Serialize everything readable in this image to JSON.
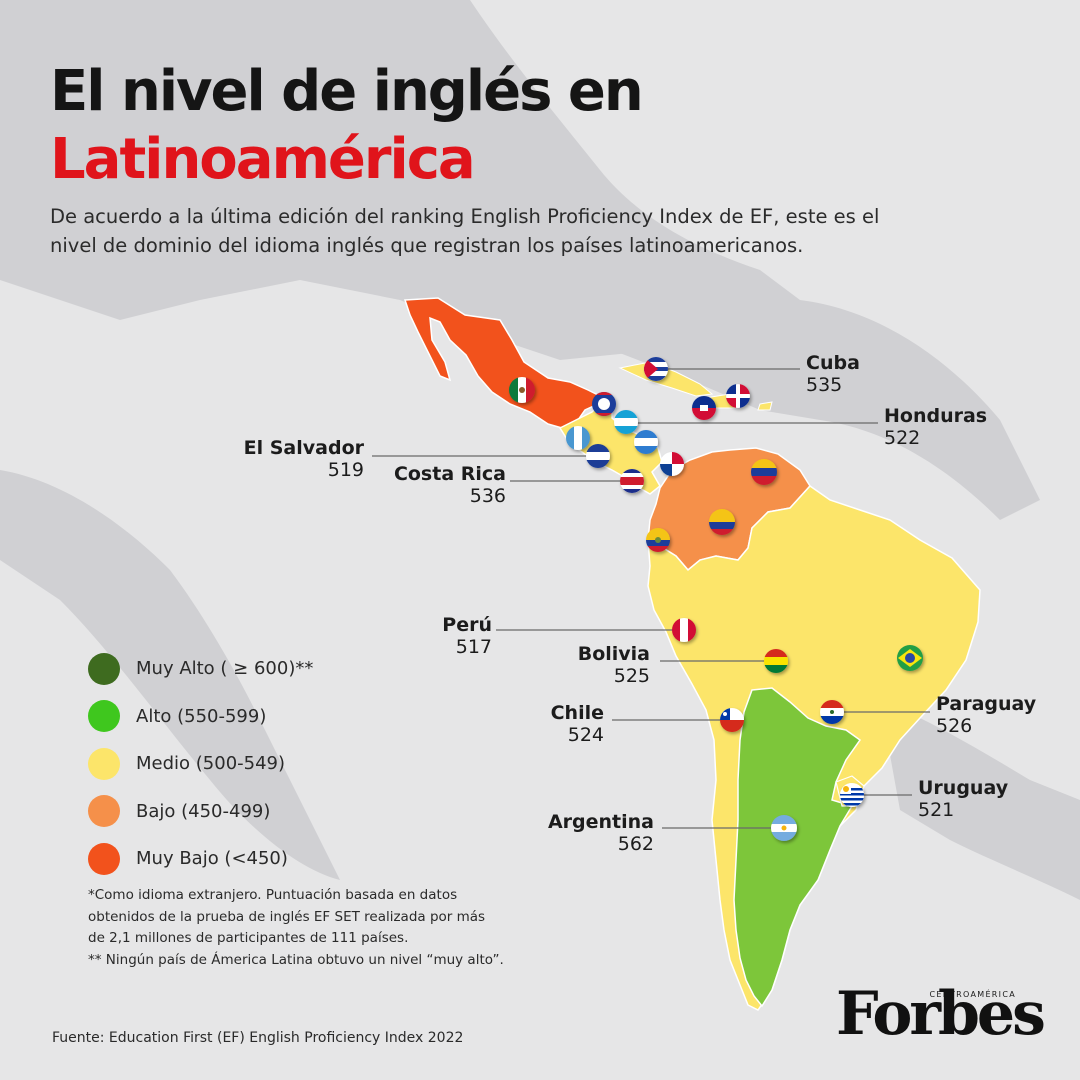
{
  "title": {
    "line1": "El nivel de inglés en",
    "line2": "Latinoamérica"
  },
  "subtitle": "De acuerdo a la última edición del ranking English Proficiency Index de EF, este es el nivel de dominio del idioma inglés que registran los países latinoamericanos.",
  "colors": {
    "title_accent": "#e0141b",
    "background": "#e6e6e7",
    "background_land": "#cfcfd2",
    "muy_alto": "#3e6b1f",
    "alto": "#7dc63a",
    "medio": "#fce56a",
    "bajo": "#f5904a",
    "muy_bajo": "#f2521c"
  },
  "legend": [
    {
      "label": "Muy Alto ( ≥ 600)**",
      "color": "#3e6b1f"
    },
    {
      "label": "Alto (550-599)",
      "color": "#3fc71e"
    },
    {
      "label": "Medio (500-549)",
      "color": "#fce56a"
    },
    {
      "label": "Bajo (450-499)",
      "color": "#f5904a"
    },
    {
      "label": "Muy Bajo (<450)",
      "color": "#f2521c"
    }
  ],
  "countries": [
    {
      "name": "Cuba",
      "score": "535",
      "level": "Medio"
    },
    {
      "name": "Honduras",
      "score": "522",
      "level": "Medio"
    },
    {
      "name": "El Salvador",
      "score": "519",
      "level": "Medio"
    },
    {
      "name": "Costa Rica",
      "score": "536",
      "level": "Medio"
    },
    {
      "name": "Perú",
      "score": "517",
      "level": "Medio"
    },
    {
      "name": "Bolivia",
      "score": "525",
      "level": "Medio"
    },
    {
      "name": "Chile",
      "score": "524",
      "level": "Medio"
    },
    {
      "name": "Paraguay",
      "score": "526",
      "level": "Medio"
    },
    {
      "name": "Uruguay",
      "score": "521",
      "level": "Medio"
    },
    {
      "name": "Argentina",
      "score": "562",
      "level": "Alto"
    }
  ],
  "flags": [
    "mexico-flag-icon",
    "belize-flag-icon",
    "guatemala-flag-icon",
    "honduras-flag-icon",
    "el-salvador-flag-icon",
    "nicaragua-flag-icon",
    "costa-rica-flag-icon",
    "panama-flag-icon",
    "cuba-flag-icon",
    "haiti-flag-icon",
    "dominican-republic-flag-icon",
    "venezuela-flag-icon",
    "colombia-flag-icon",
    "ecuador-flag-icon",
    "peru-flag-icon",
    "bolivia-flag-icon",
    "brazil-flag-icon",
    "chile-flag-icon",
    "paraguay-flag-icon",
    "uruguay-flag-icon",
    "argentina-flag-icon"
  ],
  "notes": [
    "*Como idioma extranjero. Puntuación basada en datos",
    "obtenidos de la prueba de inglés EF SET realizada por más",
    "de 2,1 millones de participantes de 111 países.",
    "** Ningún país de Ámerica Latina obtuvo un nivel “muy alto”."
  ],
  "source": "Fuente: Education First (EF) English Proficiency Index 2022",
  "logo": {
    "word": "Forbes",
    "region": "CENTROAMÉRICA"
  }
}
